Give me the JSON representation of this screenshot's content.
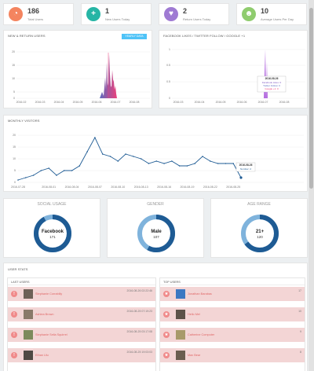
{
  "stats": [
    {
      "value": "186",
      "label": "Total Users",
      "color": "#f4845f",
      "icon": "pie-chart-icon"
    },
    {
      "value": "1",
      "label": "New Users Today",
      "color": "#26b5a5",
      "icon": "plus-icon"
    },
    {
      "value": "2",
      "label": "Return Users Today",
      "color": "#9f7ad3",
      "icon": "heart-icon"
    },
    {
      "value": "10",
      "label": "Average Users Per Day",
      "color": "#8fcc6e",
      "icon": "user-icon"
    }
  ],
  "new_return": {
    "title": "NEW & RETURN USERS",
    "button": "YEARLY DATA",
    "y_ticks": [
      "20",
      "15",
      "10",
      "5",
      "0"
    ],
    "x_ticks": [
      "2016-02",
      "2016-03",
      "2016-04",
      "2016-05",
      "2016-06",
      "2016-07",
      "2016-08"
    ]
  },
  "fb_likes": {
    "title": "FACEBOOK LIKES / TWITTER FOLLOW / GOOGLE +1",
    "y_ticks": [
      "1",
      "0.5",
      "0.5",
      "0"
    ],
    "x_ticks": [
      "2016-03",
      "2016-04",
      "2016-05",
      "2016-06",
      "2016-07",
      "2016-08"
    ],
    "tooltip": {
      "date": "2016-08-26",
      "lines": [
        "Facebook Likes: 0",
        "Twitter Follow: 0",
        "Google +1: 0"
      ]
    }
  },
  "monthly": {
    "title": "MONTHLY VISITORS",
    "y_ticks": [
      "20",
      "15",
      "10",
      "5",
      "0"
    ],
    "x_ticks": [
      "2016-07-28",
      "2016-08-01",
      "2016-08-04",
      "2016-08-07",
      "2016-08-10",
      "2016-08-13",
      "2016-08-16",
      "2016-08-19",
      "2016-08-22",
      "2016-08-25"
    ],
    "tooltip": {
      "date": "2016-08-26",
      "line": "Number: 2"
    }
  },
  "chart_data": {
    "type": "line",
    "title": "MONTHLY VISITORS",
    "x": [
      "2016-07-28",
      "2016-07-29",
      "2016-07-30",
      "2016-07-31",
      "2016-08-01",
      "2016-08-02",
      "2016-08-03",
      "2016-08-04",
      "2016-08-05",
      "2016-08-06",
      "2016-08-07",
      "2016-08-08",
      "2016-08-09",
      "2016-08-10",
      "2016-08-11",
      "2016-08-12",
      "2016-08-13",
      "2016-08-14",
      "2016-08-15",
      "2016-08-16",
      "2016-08-17",
      "2016-08-18",
      "2016-08-19",
      "2016-08-20",
      "2016-08-21",
      "2016-08-22",
      "2016-08-23",
      "2016-08-24",
      "2016-08-25",
      "2016-08-26"
    ],
    "series": [
      {
        "values": [
          1,
          2,
          3,
          5,
          6,
          3,
          5,
          5,
          7,
          13,
          19,
          12,
          11,
          9,
          12,
          11,
          10,
          8,
          9,
          8,
          9,
          7,
          7,
          8,
          11,
          9,
          8,
          8,
          8,
          2
        ]
      }
    ],
    "ylim": [
      0,
      20
    ]
  },
  "donuts": [
    {
      "title": "SOCIAL USAGE",
      "label": "Facebook",
      "value": "171",
      "fraction": 0.92
    },
    {
      "title": "GENDER",
      "label": "Male",
      "value": "107",
      "fraction": 0.58
    },
    {
      "title": "AGE RANGE",
      "label": "21+",
      "value": "120",
      "fraction": 0.65
    }
  ],
  "user_stats": {
    "title": "USER STATS",
    "last_users": {
      "title": "LAST USERS",
      "rows": [
        {
          "name": "Stephanie Corrabilly",
          "time": "2016-08-26 02:22:46"
        },
        {
          "name": "Ashlea Brown",
          "time": "2016-08-25 07:19:23"
        },
        {
          "name": "Stephanie Sella Squirrel",
          "time": "2016-08-25 03:17:08"
        },
        {
          "name": "Ethan Ulu",
          "time": "2016-08-25 19:03:03"
        }
      ]
    },
    "top_users": {
      "title": "TOP USERS",
      "rows": [
        {
          "name": "Jonathan Barabas",
          "count": "17"
        },
        {
          "name": "Hello Mel",
          "count": "10"
        },
        {
          "name": "Catherine Computer",
          "count": "9"
        },
        {
          "name": "Max Bear",
          "count": "8"
        }
      ]
    }
  }
}
